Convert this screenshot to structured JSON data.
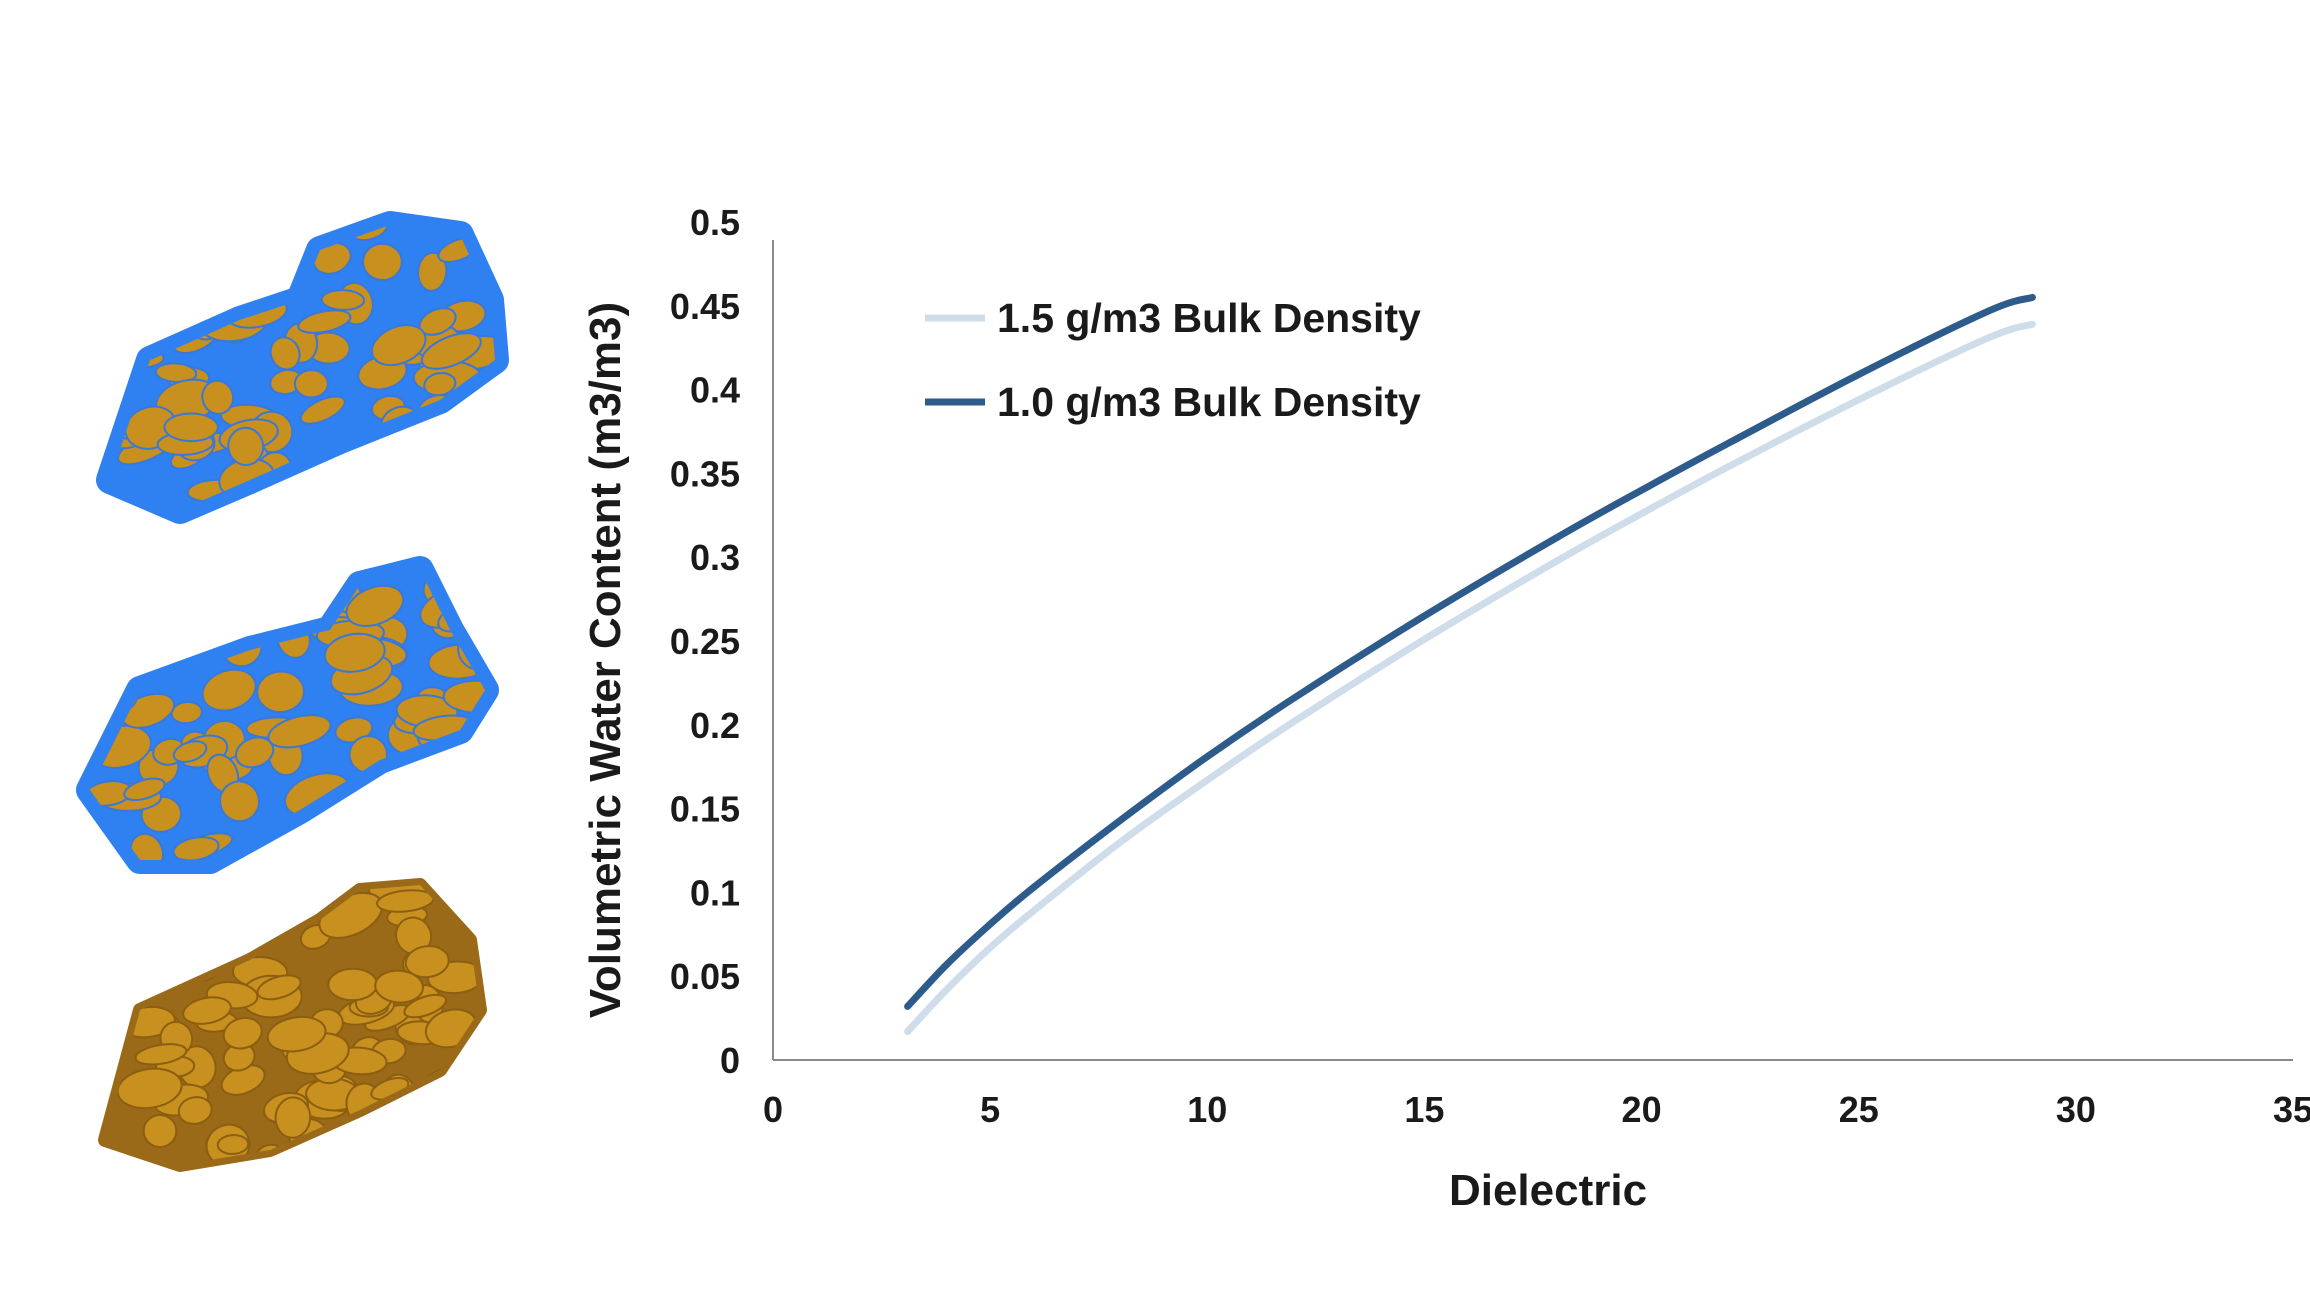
{
  "illustrations": [
    {
      "name": "saturated-soil",
      "soil_color": "#c8901e",
      "water_color": "#2f80f0"
    },
    {
      "name": "moist-soil",
      "soil_color": "#c8901e",
      "water_color": "#2f80f0"
    },
    {
      "name": "dry-soil",
      "soil_color": "#c8901e",
      "water_color": null
    }
  ],
  "chart_data": {
    "type": "line",
    "title": "",
    "xlabel": "Dielectric",
    "ylabel": "Volumetric Water Content (m3/m3)",
    "xlim": [
      0,
      35
    ],
    "ylim": [
      0,
      0.5
    ],
    "xticks": [
      "0",
      "5",
      "10",
      "15",
      "20",
      "25",
      "30",
      "35"
    ],
    "yticks": [
      "0",
      "0.05",
      "0.1",
      "0.15",
      "0.2",
      "0.25",
      "0.3",
      "0.35",
      "0.4",
      "0.45",
      "0.5"
    ],
    "grid": false,
    "legend_position": "top-left",
    "series": [
      {
        "name": "1.5 g/m3 Bulk Density",
        "color": "#cfdcea",
        "x": [
          3.1,
          4,
          5,
          6,
          8,
          10,
          12,
          15,
          18,
          20,
          22,
          25,
          28,
          29
        ],
        "y": [
          0.017,
          0.042,
          0.067,
          0.089,
          0.13,
          0.167,
          0.202,
          0.251,
          0.297,
          0.326,
          0.354,
          0.394,
          0.431,
          0.439
        ]
      },
      {
        "name": "1.0 g/m3 Bulk Density",
        "color": "#2d5b8c",
        "x": [
          3.1,
          4,
          5,
          6,
          8,
          10,
          12,
          15,
          18,
          20,
          22,
          25,
          28,
          29
        ],
        "y": [
          0.032,
          0.057,
          0.081,
          0.103,
          0.143,
          0.181,
          0.216,
          0.265,
          0.311,
          0.34,
          0.368,
          0.409,
          0.447,
          0.455
        ]
      }
    ]
  }
}
